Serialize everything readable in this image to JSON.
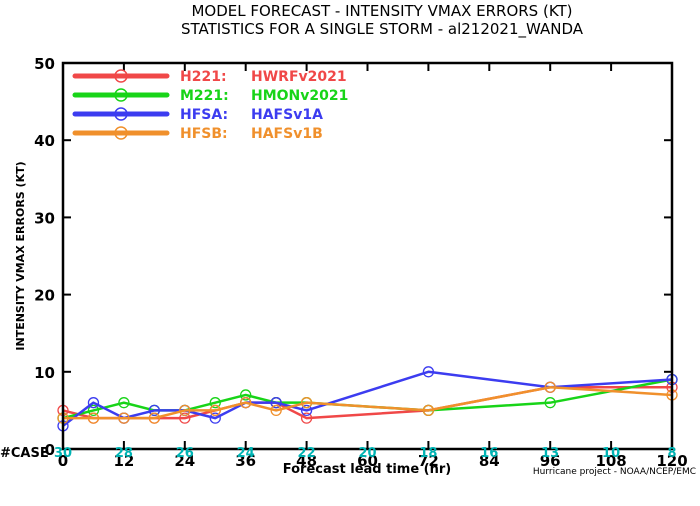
{
  "chart_data": {
    "type": "line",
    "title": "MODEL FORECAST - INTENSITY VMAX ERRORS (KT)",
    "subtitle": "STATISTICS FOR A SINGLE STORM - al212021_WANDA",
    "xlabel": "Forecast lead time (hr)",
    "ylabel": "INTENSITY VMAX ERRORS (KT)",
    "xlim": [
      0,
      120
    ],
    "ylim": [
      0,
      50
    ],
    "x_ticks": [
      "0",
      "12",
      "24",
      "36",
      "48",
      "60",
      "72",
      "84",
      "96",
      "108",
      "120"
    ],
    "y_ticks": [
      "0",
      "10",
      "20",
      "30",
      "40",
      "50"
    ],
    "grid": false,
    "legend_position": "top-left",
    "case_label": "#CASE",
    "case_color": "#00b4b4",
    "cases": [
      {
        "x": 0,
        "label": "30"
      },
      {
        "x": 12,
        "label": "28"
      },
      {
        "x": 24,
        "label": "26"
      },
      {
        "x": 36,
        "label": "24"
      },
      {
        "x": 48,
        "label": "22"
      },
      {
        "x": 60,
        "label": "20"
      },
      {
        "x": 72,
        "label": "18"
      },
      {
        "x": 84,
        "label": "16"
      },
      {
        "x": 96,
        "label": "13"
      },
      {
        "x": 108,
        "label": "10"
      },
      {
        "x": 120,
        "label": "8"
      }
    ],
    "series": [
      {
        "name": "H221: HWRFv2021",
        "code": "H221:",
        "model": "HWRFv2021",
        "color": "#f04848",
        "x": [
          0,
          6,
          12,
          18,
          24,
          30,
          36,
          42,
          48,
          72,
          96,
          120
        ],
        "y": [
          5,
          4,
          4,
          4,
          4,
          5,
          6,
          6,
          4,
          5,
          8,
          8
        ]
      },
      {
        "name": "M221: HMONv2021",
        "code": "M221:",
        "model": "HMONv2021",
        "color": "#18d418",
        "x": [
          0,
          6,
          12,
          18,
          24,
          30,
          36,
          42,
          48,
          72,
          96,
          120
        ],
        "y": [
          4,
          5,
          6,
          5,
          5,
          6,
          7,
          6,
          6,
          5,
          6,
          9
        ]
      },
      {
        "name": "HFSA: HAFSv1A",
        "code": "HFSA:",
        "model": "HAFSv1A",
        "color": "#3c3cf0",
        "x": [
          0,
          6,
          12,
          18,
          24,
          30,
          36,
          42,
          48,
          72,
          96,
          120
        ],
        "y": [
          3,
          6,
          4,
          5,
          5,
          4,
          6,
          6,
          5,
          10,
          8,
          9
        ]
      },
      {
        "name": "HFSB: HAFSv1B",
        "code": "HFSB:",
        "model": "HAFSv1B",
        "color": "#f0902c",
        "x": [
          0,
          6,
          12,
          18,
          24,
          30,
          36,
          42,
          48,
          72,
          96,
          120
        ],
        "y": [
          4,
          4,
          4,
          4,
          5,
          5,
          6,
          5,
          6,
          5,
          8,
          7
        ]
      }
    ],
    "credit": "Hurricane project - NOAA/NCEP/EMC"
  }
}
